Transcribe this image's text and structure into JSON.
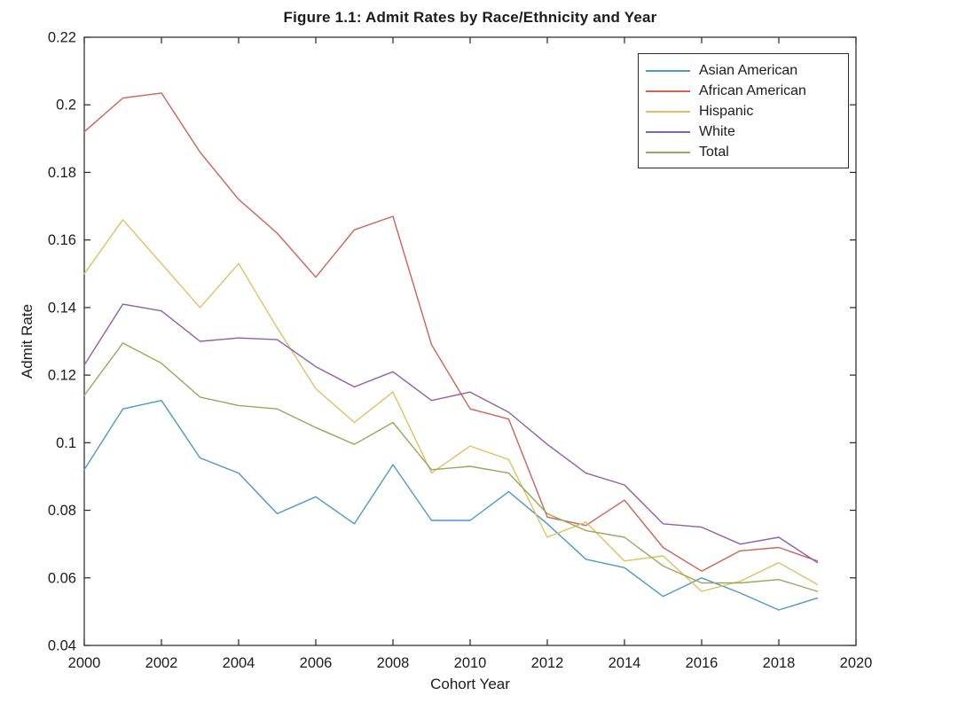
{
  "chart_data": {
    "type": "line",
    "title": "Figure 1.1: Admit Rates by Race/Ethnicity and Year",
    "xlabel": "Cohort Year",
    "ylabel": "Admit Rate",
    "x": [
      2000,
      2001,
      2002,
      2003,
      2004,
      2005,
      2006,
      2007,
      2008,
      2009,
      2010,
      2011,
      2012,
      2013,
      2014,
      2015,
      2016,
      2017,
      2018,
      2019
    ],
    "series": [
      {
        "name": "Asian American",
        "color": "#4E97CC",
        "values": [
          0.092,
          0.11,
          0.1125,
          0.0955,
          0.091,
          0.079,
          0.084,
          0.076,
          0.0935,
          0.077,
          0.077,
          0.0855,
          0.076,
          0.0655,
          0.063,
          0.0545,
          0.06,
          0.0555,
          0.0505,
          0.054
        ]
      },
      {
        "name": "African American",
        "color": "#CE6356",
        "values": [
          0.192,
          0.202,
          0.2035,
          0.186,
          0.172,
          0.162,
          0.149,
          0.163,
          0.167,
          0.129,
          0.11,
          0.107,
          0.078,
          0.0755,
          0.083,
          0.069,
          0.062,
          0.068,
          0.069,
          0.065
        ]
      },
      {
        "name": "Hispanic",
        "color": "#E2BF63",
        "values": [
          0.15,
          0.166,
          0.153,
          0.14,
          0.153,
          0.134,
          0.116,
          0.106,
          0.115,
          0.091,
          0.099,
          0.095,
          0.072,
          0.0765,
          0.065,
          0.0665,
          0.056,
          0.059,
          0.0645,
          0.058
        ]
      },
      {
        "name": "White",
        "color": "#8B62A7",
        "values": [
          0.123,
          0.141,
          0.139,
          0.13,
          0.131,
          0.1305,
          0.1225,
          0.1165,
          0.121,
          0.1125,
          0.115,
          0.109,
          0.0995,
          0.091,
          0.0875,
          0.076,
          0.075,
          0.07,
          0.072,
          0.0645
        ]
      },
      {
        "name": "Total",
        "color": "#93AB5C",
        "values": [
          0.114,
          0.1295,
          0.1235,
          0.1135,
          0.111,
          0.11,
          0.1045,
          0.0995,
          0.106,
          0.092,
          0.093,
          0.091,
          0.079,
          0.074,
          0.072,
          0.0635,
          0.0585,
          0.0585,
          0.0595,
          0.056
        ]
      }
    ],
    "xlim": [
      2000,
      2020
    ],
    "ylim": [
      0.04,
      0.22
    ],
    "xticks": [
      2000,
      2002,
      2004,
      2006,
      2008,
      2010,
      2012,
      2014,
      2016,
      2018,
      2020
    ],
    "yticks": [
      0.04,
      0.06,
      0.08,
      0.1,
      0.12,
      0.14,
      0.16,
      0.18,
      0.2,
      0.22
    ],
    "ytick_labels": [
      "0.04",
      "0.06",
      "0.08",
      "0.1",
      "0.12",
      "0.14",
      "0.16",
      "0.18",
      "0.2",
      "0.22"
    ],
    "grid": false,
    "legend_position": "top-right",
    "axis_color": "#262626"
  }
}
